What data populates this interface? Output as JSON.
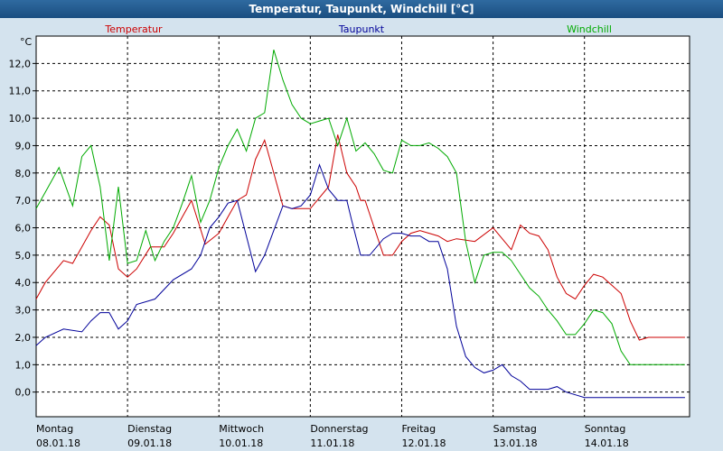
{
  "window": {
    "title": "Temperatur, Taupunkt, Windchill [°C]"
  },
  "chart_data": {
    "type": "line",
    "unit_label": "°C",
    "ylim": [
      -0.9,
      13.0
    ],
    "xlim": [
      0,
      7.15
    ],
    "yticks": [
      0,
      1,
      2,
      3,
      4,
      5,
      6,
      7,
      8,
      9,
      10,
      11,
      12
    ],
    "ytick_labels": [
      "0,0",
      "1,0",
      "2,0",
      "3,0",
      "4,0",
      "5,0",
      "6,0",
      "7,0",
      "8,0",
      "9,0",
      "10,0",
      "11,0",
      "12,0"
    ],
    "xticks": [
      {
        "day": "Montag",
        "date": "08.01.18",
        "x": 0
      },
      {
        "day": "Dienstag",
        "date": "09.01.18",
        "x": 1
      },
      {
        "day": "Mittwoch",
        "date": "10.01.18",
        "x": 2
      },
      {
        "day": "Donnerstag",
        "date": "11.01.18",
        "x": 3
      },
      {
        "day": "Freitag",
        "date": "12.01.18",
        "x": 4
      },
      {
        "day": "Samstag",
        "date": "13.01.18",
        "x": 5
      },
      {
        "day": "Sonntag",
        "date": "14.01.18",
        "x": 6
      }
    ],
    "grid": true,
    "series": [
      {
        "name": "Temperatur",
        "color": "#cc0000",
        "x": [
          0,
          0.1,
          0.3,
          0.4,
          0.6,
          0.7,
          0.8,
          0.9,
          1.0,
          1.1,
          1.25,
          1.4,
          1.5,
          1.6,
          1.7,
          1.85,
          2.0,
          2.1,
          2.2,
          2.3,
          2.4,
          2.5,
          2.6,
          2.7,
          2.8,
          3.0,
          3.2,
          3.3,
          3.4,
          3.5,
          3.55,
          3.6,
          3.7,
          3.8,
          3.9,
          4.0,
          4.1,
          4.2,
          4.3,
          4.4,
          4.5,
          4.6,
          4.8,
          5.0,
          5.2,
          5.3,
          5.4,
          5.5,
          5.6,
          5.7,
          5.8,
          5.9,
          6.0,
          6.1,
          6.2,
          6.3,
          6.4,
          6.5,
          6.6,
          6.7,
          6.8,
          6.9,
          7.0,
          7.1
        ],
        "values": [
          3.4,
          4.0,
          4.8,
          4.7,
          5.9,
          6.4,
          6.1,
          4.5,
          4.2,
          4.5,
          5.3,
          5.3,
          5.8,
          6.4,
          7.0,
          5.4,
          5.8,
          6.4,
          7.0,
          7.2,
          8.5,
          9.2,
          8.0,
          6.8,
          6.7,
          6.7,
          7.5,
          9.4,
          8.0,
          7.5,
          7.0,
          7.0,
          6.0,
          5.0,
          5.0,
          5.5,
          5.8,
          5.9,
          5.8,
          5.7,
          5.5,
          5.6,
          5.5,
          6.0,
          5.2,
          6.1,
          5.8,
          5.7,
          5.2,
          4.2,
          3.6,
          3.4,
          3.9,
          4.3,
          4.2,
          3.9,
          3.6,
          2.6,
          1.9,
          2.0,
          2.0,
          2.0,
          2.0,
          2.0
        ]
      },
      {
        "name": "Taupunkt",
        "color": "#000099",
        "x": [
          0,
          0.1,
          0.3,
          0.5,
          0.6,
          0.7,
          0.8,
          0.9,
          1.0,
          1.1,
          1.3,
          1.5,
          1.7,
          1.8,
          1.9,
          2.0,
          2.1,
          2.2,
          2.3,
          2.4,
          2.5,
          2.6,
          2.7,
          2.8,
          2.9,
          3.0,
          3.1,
          3.2,
          3.3,
          3.4,
          3.45,
          3.55,
          3.65,
          3.8,
          3.9,
          4.0,
          4.1,
          4.2,
          4.3,
          4.4,
          4.5,
          4.6,
          4.7,
          4.8,
          4.9,
          5.0,
          5.1,
          5.2,
          5.3,
          5.4,
          5.5,
          5.6,
          5.7,
          5.8,
          5.9,
          6.0,
          6.1,
          6.2,
          6.3,
          6.4,
          6.5,
          6.6,
          6.7,
          6.8,
          6.9,
          7.0,
          7.1
        ],
        "values": [
          1.7,
          2.0,
          2.3,
          2.2,
          2.6,
          2.9,
          2.9,
          2.3,
          2.6,
          3.2,
          3.4,
          4.1,
          4.5,
          5.0,
          6.0,
          6.4,
          6.9,
          7.0,
          5.7,
          4.4,
          5.0,
          5.9,
          6.8,
          6.7,
          6.8,
          7.2,
          8.3,
          7.4,
          7.0,
          7.0,
          6.3,
          5.0,
          5.0,
          5.6,
          5.8,
          5.8,
          5.7,
          5.7,
          5.5,
          5.5,
          4.5,
          2.4,
          1.3,
          0.9,
          0.7,
          0.8,
          1.0,
          0.6,
          0.4,
          0.1,
          0.1,
          0.1,
          0.2,
          0.0,
          -0.1,
          -0.2,
          -0.2,
          -0.2,
          -0.2,
          -0.2,
          -0.2,
          -0.2,
          -0.2,
          -0.2,
          -0.2,
          -0.2,
          -0.2
        ]
      },
      {
        "name": "Windchill",
        "color": "#00aa00",
        "x": [
          0,
          0.1,
          0.25,
          0.4,
          0.5,
          0.6,
          0.7,
          0.8,
          0.9,
          1.0,
          1.1,
          1.2,
          1.3,
          1.4,
          1.5,
          1.6,
          1.7,
          1.8,
          1.9,
          2.0,
          2.1,
          2.2,
          2.3,
          2.4,
          2.5,
          2.6,
          2.7,
          2.8,
          2.9,
          3.0,
          3.1,
          3.2,
          3.3,
          3.4,
          3.5,
          3.6,
          3.7,
          3.8,
          3.9,
          4.0,
          4.1,
          4.2,
          4.3,
          4.4,
          4.5,
          4.6,
          4.7,
          4.8,
          4.9,
          5.0,
          5.1,
          5.2,
          5.3,
          5.4,
          5.5,
          5.6,
          5.7,
          5.8,
          5.9,
          6.0,
          6.1,
          6.2,
          6.3,
          6.4,
          6.5,
          6.6,
          6.7,
          6.8,
          6.9,
          7.0,
          7.1
        ],
        "values": [
          6.7,
          7.3,
          8.2,
          6.8,
          8.6,
          9.0,
          7.5,
          4.8,
          7.5,
          4.7,
          4.8,
          5.9,
          4.8,
          5.5,
          6.0,
          6.9,
          7.9,
          6.2,
          7.0,
          8.2,
          9.0,
          9.6,
          8.8,
          10.0,
          10.2,
          12.5,
          11.4,
          10.5,
          10.0,
          9.8,
          9.9,
          10.0,
          9.0,
          10.0,
          8.8,
          9.1,
          8.7,
          8.1,
          8.0,
          9.2,
          9.0,
          9.0,
          9.1,
          8.9,
          8.6,
          8.0,
          5.5,
          4.0,
          5.0,
          5.1,
          5.1,
          4.8,
          4.3,
          3.8,
          3.5,
          3.0,
          2.6,
          2.1,
          2.1,
          2.5,
          3.0,
          2.9,
          2.5,
          1.5,
          1.0,
          1.0,
          1.0,
          1.0,
          1.0,
          1.0,
          1.0
        ]
      }
    ]
  }
}
